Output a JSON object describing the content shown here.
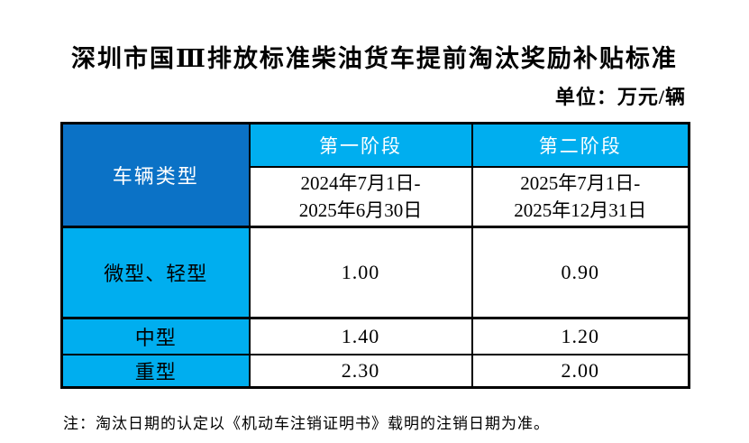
{
  "title": "深圳市国Ⅲ排放标准柴油货车提前淘汰奖励补贴标准",
  "unit_label": "单位：万元/辆",
  "table": {
    "vehicle_type_header": "车辆类型",
    "phases": [
      {
        "header": "第一阶段",
        "period_line1": "2024年7月1日-",
        "period_line2": "2025年6月30日"
      },
      {
        "header": "第二阶段",
        "period_line1": "2025年7月1日-",
        "period_line2": "2025年12月31日"
      }
    ],
    "rows": [
      {
        "type": "微型、轻型",
        "phase1": "1.00",
        "phase2": "0.90"
      },
      {
        "type": "中型",
        "phase1": "1.40",
        "phase2": "1.20"
      },
      {
        "type": "重型",
        "phase1": "2.30",
        "phase2": "2.00"
      }
    ]
  },
  "note": "注：淘汰日期的认定以《机动车注销证明书》载明的注销日期为准。",
  "colors": {
    "header_dark_blue": "#0B72C6",
    "header_cyan": "#00AEEF",
    "border_black": "#000000",
    "header_text_white": "#FFFFFF",
    "body_text_black": "#000000"
  }
}
